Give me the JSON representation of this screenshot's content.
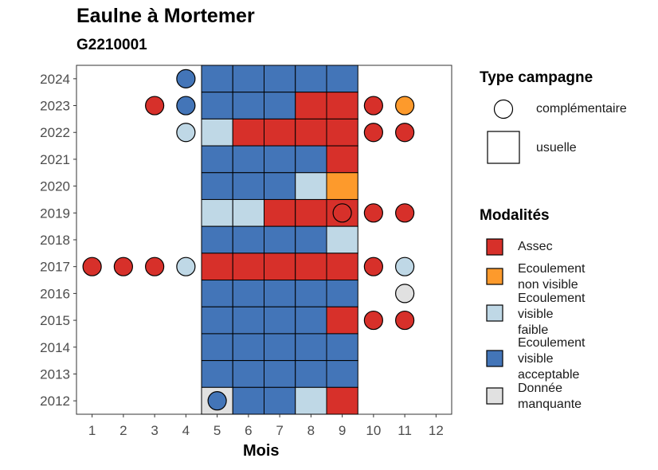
{
  "title": "Eaulne à Mortemer",
  "subtitle": "G2210001",
  "chart_data": {
    "type": "heatmap",
    "xlabel": "Mois",
    "ylabel": "",
    "x_ticks": [
      1,
      2,
      3,
      4,
      5,
      6,
      7,
      8,
      9,
      10,
      11,
      12
    ],
    "y_ticks": [
      2012,
      2013,
      2014,
      2015,
      2016,
      2017,
      2018,
      2019,
      2020,
      2021,
      2022,
      2023,
      2024
    ],
    "xlim": [
      0.5,
      12.5
    ],
    "ylim": [
      2011.5,
      2024.5
    ],
    "modality_colors": {
      "Assec": "#d7302a",
      "Ecoulement non visible": "#fd9a2c",
      "Ecoulement visible faible": "#bfd8e6",
      "Ecoulement visible acceptable": "#4375b8",
      "Donnée manquante": "#e1e1e1"
    },
    "usuelle": [
      {
        "year": 2024,
        "months": [
          5,
          6,
          7,
          8,
          9
        ],
        "values": [
          "Ecoulement visible acceptable",
          "Ecoulement visible acceptable",
          "Ecoulement visible acceptable",
          "Ecoulement visible acceptable",
          "Ecoulement visible acceptable"
        ]
      },
      {
        "year": 2023,
        "months": [
          5,
          6,
          7,
          8,
          9
        ],
        "values": [
          "Ecoulement visible acceptable",
          "Ecoulement visible acceptable",
          "Ecoulement visible acceptable",
          "Assec",
          "Assec"
        ]
      },
      {
        "year": 2022,
        "months": [
          5,
          6,
          7,
          8,
          9
        ],
        "values": [
          "Ecoulement visible faible",
          "Assec",
          "Assec",
          "Assec",
          "Assec"
        ]
      },
      {
        "year": 2021,
        "months": [
          5,
          6,
          7,
          8,
          9
        ],
        "values": [
          "Ecoulement visible acceptable",
          "Ecoulement visible acceptable",
          "Ecoulement visible acceptable",
          "Ecoulement visible acceptable",
          "Assec"
        ]
      },
      {
        "year": 2020,
        "months": [
          5,
          6,
          7,
          8,
          9
        ],
        "values": [
          "Ecoulement visible acceptable",
          "Ecoulement visible acceptable",
          "Ecoulement visible acceptable",
          "Ecoulement visible faible",
          "Ecoulement non visible"
        ]
      },
      {
        "year": 2019,
        "months": [
          5,
          6,
          7,
          8,
          9
        ],
        "values": [
          "Ecoulement visible faible",
          "Ecoulement visible faible",
          "Assec",
          "Assec",
          "Assec"
        ]
      },
      {
        "year": 2018,
        "months": [
          5,
          6,
          7,
          8,
          9
        ],
        "values": [
          "Ecoulement visible acceptable",
          "Ecoulement visible acceptable",
          "Ecoulement visible acceptable",
          "Ecoulement visible acceptable",
          "Ecoulement visible faible"
        ]
      },
      {
        "year": 2017,
        "months": [
          5,
          6,
          7,
          8,
          9
        ],
        "values": [
          "Assec",
          "Assec",
          "Assec",
          "Assec",
          "Assec"
        ]
      },
      {
        "year": 2016,
        "months": [
          5,
          6,
          7,
          8,
          9
        ],
        "values": [
          "Ecoulement visible acceptable",
          "Ecoulement visible acceptable",
          "Ecoulement visible acceptable",
          "Ecoulement visible acceptable",
          "Ecoulement visible acceptable"
        ]
      },
      {
        "year": 2015,
        "months": [
          5,
          6,
          7,
          8,
          9
        ],
        "values": [
          "Ecoulement visible acceptable",
          "Ecoulement visible acceptable",
          "Ecoulement visible acceptable",
          "Ecoulement visible acceptable",
          "Assec"
        ]
      },
      {
        "year": 2014,
        "months": [
          5,
          6,
          7,
          8,
          9
        ],
        "values": [
          "Ecoulement visible acceptable",
          "Ecoulement visible acceptable",
          "Ecoulement visible acceptable",
          "Ecoulement visible acceptable",
          "Ecoulement visible acceptable"
        ]
      },
      {
        "year": 2013,
        "months": [
          5,
          6,
          7,
          8,
          9
        ],
        "values": [
          "Ecoulement visible acceptable",
          "Ecoulement visible acceptable",
          "Ecoulement visible acceptable",
          "Ecoulement visible acceptable",
          "Ecoulement visible acceptable"
        ]
      },
      {
        "year": 2012,
        "months": [
          5,
          6,
          7,
          8,
          9
        ],
        "values": [
          "Donnée manquante",
          "Ecoulement visible acceptable",
          "Ecoulement visible acceptable",
          "Ecoulement visible faible",
          "Assec"
        ]
      }
    ],
    "complementaire": [
      {
        "year": 2024,
        "month": 4,
        "value": "Ecoulement visible acceptable"
      },
      {
        "year": 2023,
        "month": 3,
        "value": "Assec"
      },
      {
        "year": 2023,
        "month": 4,
        "value": "Ecoulement visible acceptable"
      },
      {
        "year": 2023,
        "month": 10,
        "value": "Assec"
      },
      {
        "year": 2023,
        "month": 11,
        "value": "Ecoulement non visible"
      },
      {
        "year": 2022,
        "month": 4,
        "value": "Ecoulement visible faible"
      },
      {
        "year": 2022,
        "month": 10,
        "value": "Assec"
      },
      {
        "year": 2022,
        "month": 11,
        "value": "Assec"
      },
      {
        "year": 2019,
        "month": 9,
        "value": "Assec"
      },
      {
        "year": 2019,
        "month": 10,
        "value": "Assec"
      },
      {
        "year": 2019,
        "month": 11,
        "value": "Assec"
      },
      {
        "year": 2017,
        "month": 1,
        "value": "Assec"
      },
      {
        "year": 2017,
        "month": 2,
        "value": "Assec"
      },
      {
        "year": 2017,
        "month": 3,
        "value": "Assec"
      },
      {
        "year": 2017,
        "month": 4,
        "value": "Ecoulement visible faible"
      },
      {
        "year": 2017,
        "month": 10,
        "value": "Assec"
      },
      {
        "year": 2017,
        "month": 11,
        "value": "Ecoulement visible faible"
      },
      {
        "year": 2016,
        "month": 11,
        "value": "Donnée manquante"
      },
      {
        "year": 2015,
        "month": 10,
        "value": "Assec"
      },
      {
        "year": 2015,
        "month": 11,
        "value": "Assec"
      },
      {
        "year": 2012,
        "month": 5,
        "value": "Ecoulement visible acceptable"
      }
    ]
  },
  "legend_type": {
    "title": "Type campagne",
    "items": [
      "complémentaire",
      "usuelle"
    ]
  },
  "legend_modalites": {
    "title": "Modalités",
    "items": [
      {
        "lines": [
          "Assec"
        ],
        "color": "#d7302a"
      },
      {
        "lines": [
          "Ecoulement",
          "non visible"
        ],
        "color": "#fd9a2c"
      },
      {
        "lines": [
          "Ecoulement",
          "visible",
          "faible"
        ],
        "color": "#bfd8e6"
      },
      {
        "lines": [
          "Ecoulement",
          "visible",
          "acceptable"
        ],
        "color": "#4375b8"
      },
      {
        "lines": [
          "Donnée",
          "manquante"
        ],
        "color": "#e1e1e1"
      }
    ]
  }
}
